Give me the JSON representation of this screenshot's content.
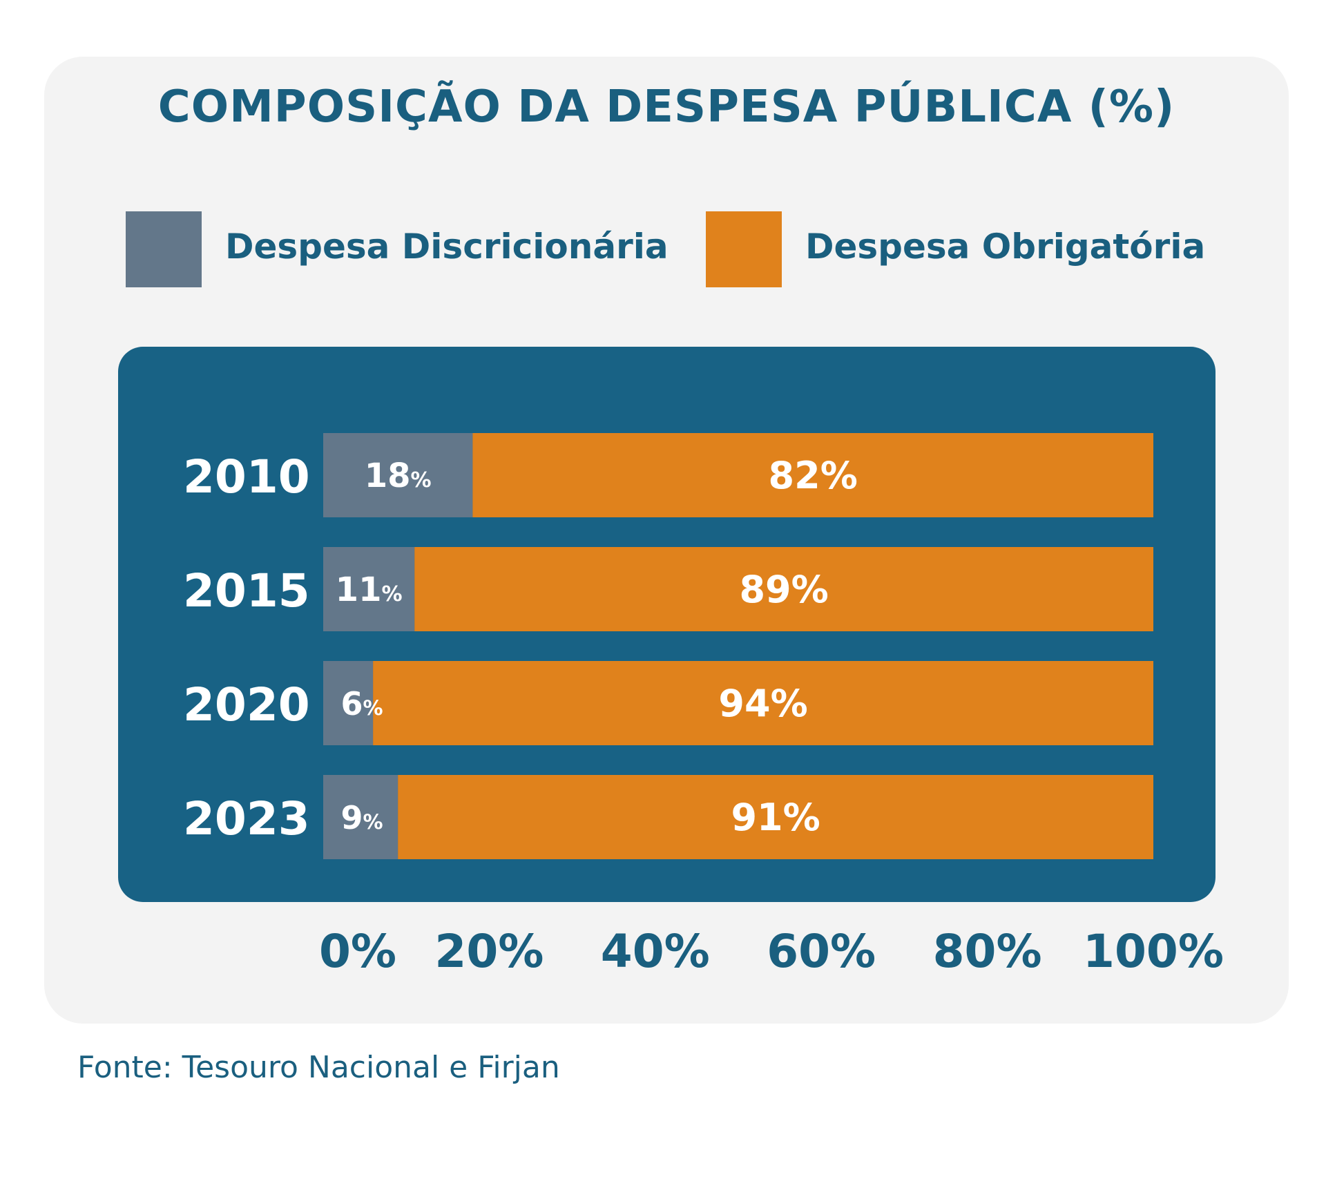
{
  "chart_data": {
    "type": "bar",
    "orientation": "horizontal",
    "stacked": true,
    "title": "COMPOSIÇÃO DA DESPESA PÚBLICA (%)",
    "categories": [
      "2010",
      "2015",
      "2020",
      "2023"
    ],
    "series": [
      {
        "name": "Despesa Discricionária",
        "color": "#63778a",
        "values": [
          18,
          11,
          6,
          9
        ]
      },
      {
        "name": "Despesa Obrigatória",
        "color": "#e0821c",
        "values": [
          82,
          89,
          94,
          91
        ]
      }
    ],
    "xlim": [
      0,
      100
    ],
    "xticks": [
      0,
      20,
      40,
      60,
      80,
      100
    ],
    "xtick_labels": [
      "0%",
      "20%",
      "40%",
      "60%",
      "80%",
      "100%"
    ],
    "value_suffix": "%",
    "grid": false,
    "legend_position": "top"
  },
  "colors": {
    "title": "#1a5f7f",
    "plot_background": "#186285",
    "card_background": "#f3f3f3",
    "label_on_bar": "#ffffff"
  },
  "source": "Fonte: Tesouro Nacional e Firjan"
}
